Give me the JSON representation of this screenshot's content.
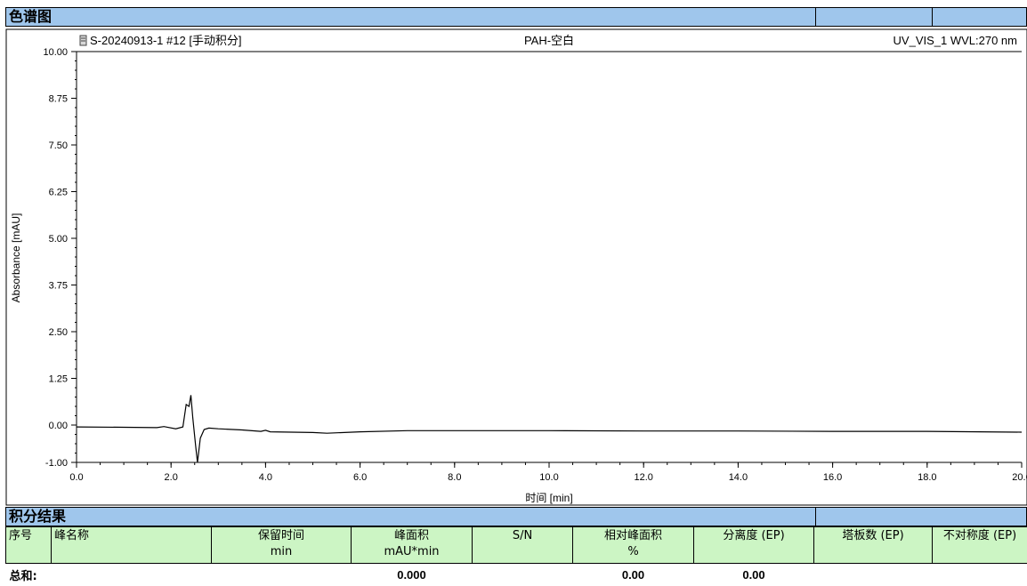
{
  "chromatogram_section": {
    "title": "色谱图"
  },
  "chart_data": {
    "type": "line",
    "header_left": "S-20240913-1 #12 [手动积分]",
    "header_center": "PAH-空白",
    "header_right": "UV_VIS_1 WVL:270 nm",
    "xlabel": "时间 [min]",
    "ylabel": "Absorbance [mAU]",
    "xlim": [
      0,
      20
    ],
    "ylim": [
      -1.0,
      10.0
    ],
    "x_ticks": [
      "0.0",
      "2.0",
      "4.0",
      "6.0",
      "8.0",
      "10.0",
      "12.0",
      "14.0",
      "16.0",
      "18.0",
      "20.0"
    ],
    "y_ticks": [
      "10.00",
      "8.75",
      "7.50",
      "6.25",
      "5.00",
      "3.75",
      "2.50",
      "1.25",
      "0.00",
      "-1.00"
    ],
    "series": [
      {
        "color": "#000000",
        "x": [
          0.0,
          1.0,
          1.7,
          1.85,
          2.1,
          2.25,
          2.32,
          2.38,
          2.42,
          2.46,
          2.52,
          2.56,
          2.62,
          2.7,
          2.8,
          3.0,
          3.5,
          3.9,
          4.0,
          4.1,
          5.0,
          5.3,
          6.0,
          7.0,
          8.0,
          10.0,
          12.0,
          14.0,
          16.0,
          18.0,
          20.0
        ],
        "y": [
          -0.05,
          -0.06,
          -0.07,
          -0.04,
          -0.1,
          -0.05,
          0.55,
          0.5,
          0.8,
          0.2,
          -0.55,
          -1.0,
          -0.35,
          -0.12,
          -0.08,
          -0.1,
          -0.13,
          -0.17,
          -0.14,
          -0.18,
          -0.2,
          -0.22,
          -0.18,
          -0.15,
          -0.15,
          -0.15,
          -0.16,
          -0.16,
          -0.17,
          -0.17,
          -0.19
        ]
      }
    ]
  },
  "results_section": {
    "title": "积分结果"
  },
  "results_table": {
    "headers": [
      {
        "line1": "序号",
        "line2": ""
      },
      {
        "line1": "峰名称",
        "line2": ""
      },
      {
        "line1": "保留时间",
        "line2": "min"
      },
      {
        "line1": "峰面积",
        "line2": "mAU*min"
      },
      {
        "line1": "S/N",
        "line2": ""
      },
      {
        "line1": "相对峰面积",
        "line2": "%"
      },
      {
        "line1": "分离度 (EP)",
        "line2": ""
      },
      {
        "line1": "塔板数 (EP)",
        "line2": ""
      },
      {
        "line1": "不对称度 (EP)",
        "line2": ""
      }
    ],
    "sum_row": {
      "label": "总和:",
      "area": "0.000",
      "relative_area": "0.00",
      "resolution": "0.00"
    }
  }
}
